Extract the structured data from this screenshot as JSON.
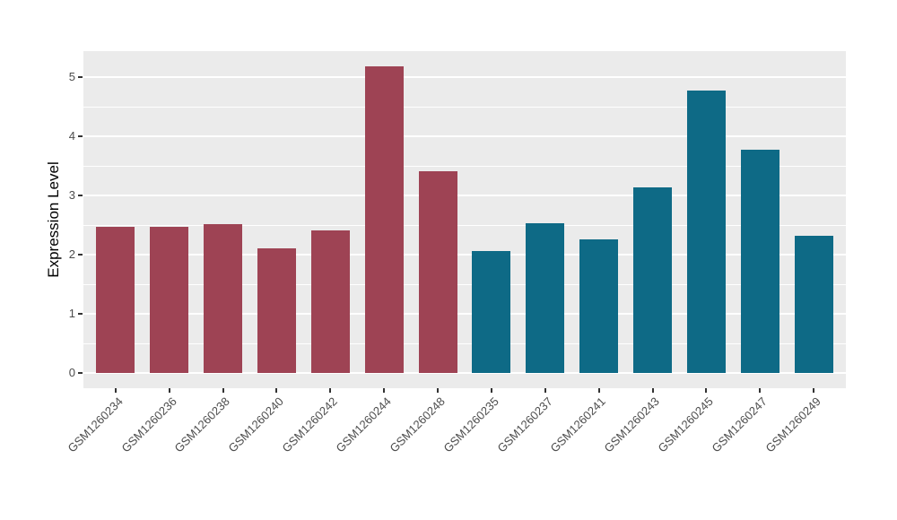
{
  "chart_data": {
    "type": "bar",
    "title": "",
    "xlabel": "",
    "ylabel": "Expression Level",
    "categories": [
      "GSM1260234",
      "GSM1260236",
      "GSM1260238",
      "GSM1260240",
      "GSM1260242",
      "GSM1260244",
      "GSM1260248",
      "GSM1260235",
      "GSM1260237",
      "GSM1260241",
      "GSM1260243",
      "GSM1260245",
      "GSM1260247",
      "GSM1260249"
    ],
    "values": [
      2.47,
      2.47,
      2.51,
      2.11,
      2.41,
      5.18,
      3.41,
      2.06,
      2.53,
      2.25,
      3.13,
      4.78,
      3.77,
      2.32
    ],
    "groups": [
      "group1",
      "group1",
      "group1",
      "group1",
      "group1",
      "group1",
      "group1",
      "group2",
      "group2",
      "group2",
      "group2",
      "group2",
      "group2",
      "group2"
    ],
    "group_colors": {
      "group1": "#9e4354",
      "group2": "#0e6a86"
    },
    "y_ticks": [
      0,
      1,
      2,
      3,
      4,
      5
    ],
    "y_minor_ticks": [
      0.5,
      1.5,
      2.5,
      3.5,
      4.5
    ],
    "ylim": [
      -0.26,
      5.44
    ],
    "grid": "on",
    "legend": "none",
    "panel_bg_color": "#ebebeb",
    "grid_color": "#ffffff",
    "tick_label_color": "#4d4d4d",
    "tick_mark_color": "#333333",
    "axis_title_color": "#000000"
  }
}
